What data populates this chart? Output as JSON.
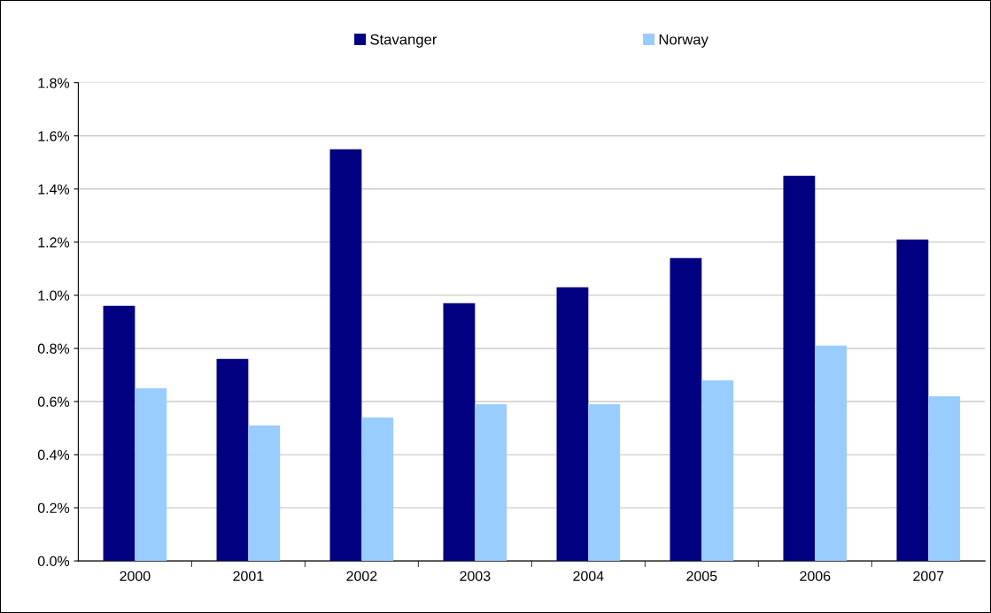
{
  "chart_data": {
    "type": "bar",
    "categories": [
      "2000",
      "2001",
      "2002",
      "2003",
      "2004",
      "2005",
      "2006",
      "2007"
    ],
    "series": [
      {
        "name": "Stavanger",
        "color": "#000080",
        "values": [
          0.96,
          0.76,
          1.55,
          0.97,
          1.03,
          1.14,
          1.45,
          1.21
        ]
      },
      {
        "name": "Norway",
        "color": "#99ccff",
        "values": [
          0.65,
          0.51,
          0.54,
          0.59,
          0.59,
          0.68,
          0.81,
          0.62
        ]
      }
    ],
    "ylim": [
      0,
      1.8
    ],
    "yticks": [
      {
        "value": 0,
        "label": "0.0%"
      },
      {
        "value": 0.2,
        "label": "0.2%"
      },
      {
        "value": 0.4,
        "label": "0.4%"
      },
      {
        "value": 0.6,
        "label": "0.6%"
      },
      {
        "value": 0.8,
        "label": "0.8%"
      },
      {
        "value": 1.0,
        "label": "1.0%"
      },
      {
        "value": 1.2,
        "label": "1.2%"
      },
      {
        "value": 1.4,
        "label": "1.4%"
      },
      {
        "value": 1.6,
        "label": "1.6%"
      },
      {
        "value": 1.8,
        "label": "1.8%"
      }
    ],
    "grid": "y",
    "legend": "top"
  }
}
